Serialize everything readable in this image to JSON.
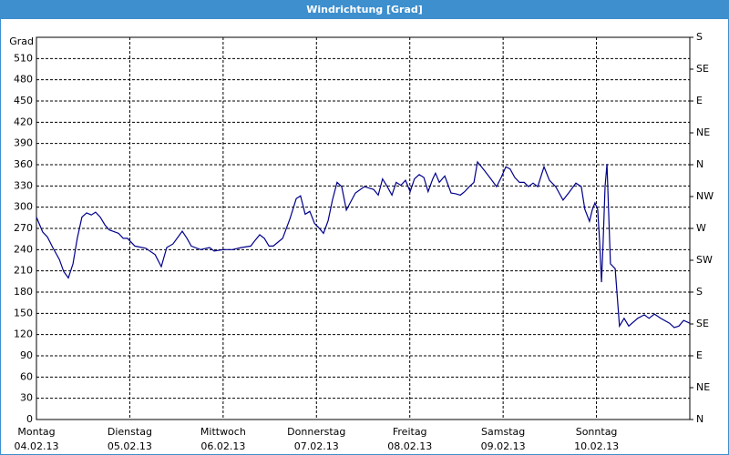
{
  "chart_data": {
    "type": "line",
    "title": "Windrichtung [Grad]",
    "y_label": "Grad",
    "x": [
      0,
      1.6,
      2.8,
      4.2,
      5.9,
      7.0,
      8.2,
      9.4,
      10.5,
      11.7,
      12.9,
      14.1,
      15.2,
      16.4,
      17.6,
      18.7,
      21.1,
      22.3,
      23.4,
      25.3,
      28.1,
      30.5,
      32.1,
      33.5,
      35.1,
      37.5,
      38.7,
      39.8,
      42.2,
      44.5,
      45.7,
      48.0,
      50.4,
      52.7,
      55.1,
      56.2,
      57.4,
      58.6,
      59.8,
      60.9,
      63.3,
      65.2,
      66.8,
      67.9,
      69.1,
      70.3,
      71.5,
      72.6,
      73.8,
      75.0,
      76.1,
      77.3,
      78.5,
      79.7,
      82.0,
      84.3,
      86.7,
      87.9,
      89.0,
      90.2,
      91.4,
      92.5,
      93.7,
      94.9,
      96.1,
      97.2,
      98.4,
      99.6,
      100.7,
      101.9,
      102.6,
      103.6,
      105.0,
      106.6,
      107.8,
      109.0,
      110.1,
      111.3,
      112.5,
      113.4,
      114.3,
      115.3,
      117.1,
      118.3,
      119.5,
      120.7,
      121.8,
      123.0,
      124.2,
      125.4,
      126.5,
      127.7,
      128.9,
      130.5,
      131.9,
      133.5,
      135.4,
      137.1,
      138.7,
      140.1,
      141.0,
      142.2,
      142.9,
      143.6,
      144.3,
      144.8,
      145.3,
      145.7,
      146.2,
      146.7,
      147.1,
      147.6,
      148.8,
      149.9,
      151.1,
      152.3,
      154.6,
      156.3,
      157.5,
      158.9,
      160.5,
      162.8,
      164.0,
      165.2,
      166.4,
      168.0
    ],
    "series": [
      {
        "name": "Windrichtung",
        "color": "#00008b",
        "values": [
          286,
          265,
          258,
          243,
          226,
          209,
          200,
          220,
          256,
          286,
          292,
          289,
          293,
          286,
          275,
          268,
          263,
          256,
          256,
          245,
          242,
          233,
          216,
          243,
          248,
          266,
          256,
          245,
          240,
          243,
          238,
          240,
          240,
          243,
          245,
          253,
          261,
          256,
          245,
          245,
          256,
          284,
          312,
          316,
          290,
          294,
          277,
          271,
          263,
          281,
          310,
          335,
          329,
          296,
          320,
          329,
          325,
          317,
          340,
          329,
          317,
          335,
          331,
          338,
          322,
          340,
          346,
          342,
          322,
          340,
          348,
          335,
          344,
          320,
          319,
          317,
          322,
          329,
          335,
          364,
          358,
          351,
          338,
          329,
          342,
          357,
          354,
          342,
          335,
          335,
          329,
          334,
          329,
          357,
          338,
          329,
          310,
          322,
          334,
          329,
          297,
          280,
          296,
          306,
          297,
          252,
          194,
          248,
          329,
          361,
          297,
          220,
          213,
          132,
          143,
          132,
          143,
          148,
          143,
          149,
          143,
          136,
          130,
          132,
          140,
          136
        ]
      }
    ],
    "xlim": [
      0,
      168
    ],
    "xticks": [
      {
        "value": 0,
        "label": "Montag",
        "date": "04.02.13"
      },
      {
        "value": 24,
        "label": "Dienstag",
        "date": "05.02.13"
      },
      {
        "value": 48,
        "label": "Mittwoch",
        "date": "06.02.13"
      },
      {
        "value": 72,
        "label": "Donnerstag",
        "date": "07.02.13"
      },
      {
        "value": 96,
        "label": "Freitag",
        "date": "08.02.13"
      },
      {
        "value": 120,
        "label": "Samstag",
        "date": "09.02.13"
      },
      {
        "value": 144,
        "label": "Sonntag",
        "date": "10.02.13"
      }
    ],
    "ylim": [
      0,
      540
    ],
    "yticks": [
      0,
      30,
      60,
      90,
      120,
      150,
      180,
      210,
      240,
      270,
      300,
      330,
      360,
      390,
      420,
      450,
      480,
      510
    ],
    "y2lim": [
      0,
      540
    ],
    "y2ticks": [
      {
        "value": 0,
        "label": "N"
      },
      {
        "value": 45,
        "label": "NE"
      },
      {
        "value": 90,
        "label": "E"
      },
      {
        "value": 135,
        "label": "SE"
      },
      {
        "value": 180,
        "label": "S"
      },
      {
        "value": 225,
        "label": "SW"
      },
      {
        "value": 270,
        "label": "W"
      },
      {
        "value": 315,
        "label": "NW"
      },
      {
        "value": 360,
        "label": "N"
      },
      {
        "value": 405,
        "label": "NE"
      },
      {
        "value": 450,
        "label": "E"
      },
      {
        "value": 495,
        "label": "SE"
      },
      {
        "value": 540,
        "label": "S"
      }
    ],
    "grid": true
  }
}
